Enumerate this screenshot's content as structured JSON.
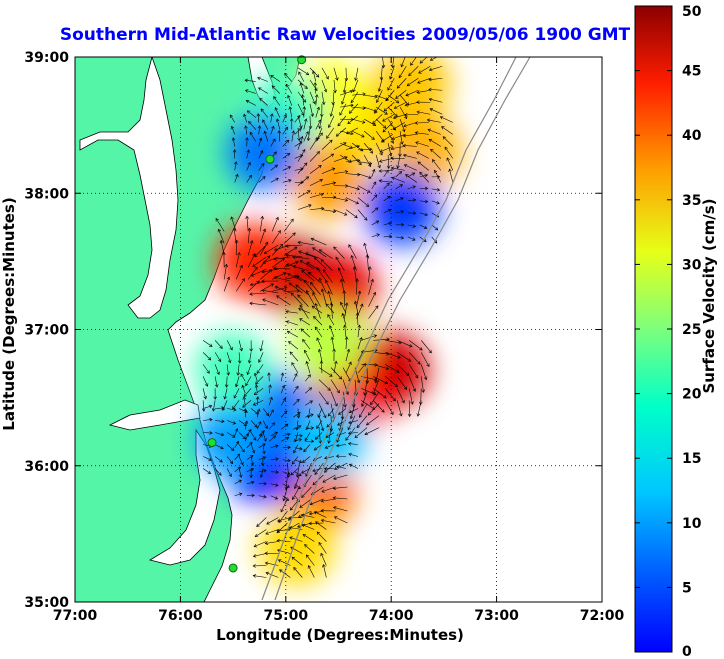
{
  "chart_data": {
    "type": "heatmap",
    "title": "Southern Mid-Atlantic Raw Velocities 2009/05/06 1900 GMT",
    "xlabel": "Longitude (Degrees:Minutes)",
    "ylabel": "Latitude (Degrees:Minutes)",
    "xlim": [
      -77,
      -72
    ],
    "ylim": [
      35,
      39
    ],
    "x_ticks": [
      {
        "value": -77,
        "label": "77:00"
      },
      {
        "value": -76,
        "label": "76:00"
      },
      {
        "value": -75,
        "label": "75:00"
      },
      {
        "value": -74,
        "label": "74:00"
      },
      {
        "value": -73,
        "label": "73:00"
      },
      {
        "value": -72,
        "label": "72:00"
      }
    ],
    "y_ticks": [
      {
        "value": 35,
        "label": "35:00"
      },
      {
        "value": 36,
        "label": "36:00"
      },
      {
        "value": 37,
        "label": "37:00"
      },
      {
        "value": 38,
        "label": "38:00"
      },
      {
        "value": 39,
        "label": "39:00"
      }
    ],
    "grid": true,
    "colorbar": {
      "label": "Surface Velocity (cm/s)",
      "range": [
        0,
        50
      ],
      "ticks": [
        0,
        5,
        10,
        15,
        20,
        25,
        30,
        35,
        40,
        45,
        50
      ],
      "colormap": "jet"
    },
    "velocity_regions": [
      {
        "lon": -74.9,
        "lat": 37.4,
        "speed": 48
      },
      {
        "lon": -74.5,
        "lat": 37.3,
        "speed": 45
      },
      {
        "lon": -75.3,
        "lat": 37.5,
        "speed": 42
      },
      {
        "lon": -74.6,
        "lat": 38.1,
        "speed": 36
      },
      {
        "lon": -74.2,
        "lat": 38.5,
        "speed": 33
      },
      {
        "lon": -74.6,
        "lat": 38.7,
        "speed": 31
      },
      {
        "lon": -73.8,
        "lat": 38.8,
        "speed": 34
      },
      {
        "lon": -73.7,
        "lat": 38.3,
        "speed": 35
      },
      {
        "lon": -75.0,
        "lat": 38.6,
        "speed": 22
      },
      {
        "lon": -75.2,
        "lat": 38.3,
        "speed": 12
      },
      {
        "lon": -73.9,
        "lat": 37.9,
        "speed": 9
      },
      {
        "lon": -74.0,
        "lat": 36.7,
        "speed": 46
      },
      {
        "lon": -74.4,
        "lat": 36.5,
        "speed": 44
      },
      {
        "lon": -74.7,
        "lat": 35.8,
        "speed": 38
      },
      {
        "lon": -74.9,
        "lat": 35.4,
        "speed": 33
      },
      {
        "lon": -74.6,
        "lat": 36.9,
        "speed": 28
      },
      {
        "lon": -75.1,
        "lat": 36.4,
        "speed": 11
      },
      {
        "lon": -75.2,
        "lat": 36.0,
        "speed": 7
      },
      {
        "lon": -75.5,
        "lat": 36.2,
        "speed": 14
      },
      {
        "lon": -75.5,
        "lat": 36.7,
        "speed": 22
      },
      {
        "lon": -74.6,
        "lat": 36.2,
        "speed": 16
      }
    ],
    "station_markers": [
      {
        "lon": -74.85,
        "lat": 38.98
      },
      {
        "lon": -75.15,
        "lat": 38.25
      },
      {
        "lon": -75.7,
        "lat": 36.17
      },
      {
        "lon": -75.5,
        "lat": 35.25
      }
    ]
  }
}
